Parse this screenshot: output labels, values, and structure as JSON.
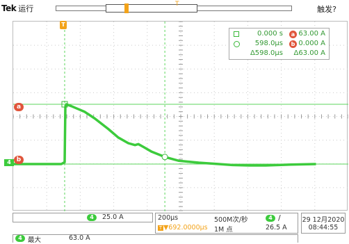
{
  "header": {
    "brand": "Tek",
    "run_state": "运行",
    "trigger_state": "触发?",
    "trigger_position_marker": "T"
  },
  "markers": {
    "cursor_a": "a",
    "cursor_b": "b",
    "channel": "4",
    "trigger_time": "T"
  },
  "cursors": {
    "cursor1_time": "0.000 s",
    "cursor1_label": "a",
    "cursor1_value": "63.00 A",
    "cursor2_time": "598.0µs",
    "cursor2_label": "b",
    "cursor2_value": "0.000 A",
    "delta_time": "Δ598.0µs",
    "delta_value": "Δ63.00 A"
  },
  "channel_scale": {
    "channel": "4",
    "volts_per_div": "25.0 A"
  },
  "timebase": {
    "scale": "200µs",
    "offset": "▼692.0000µs",
    "offset_prefix": "T",
    "sample_rate": "500M次/秒",
    "record_length": "1M 点",
    "trigger_channel": "4",
    "trigger_slope": "/",
    "trigger_level": "26.5 A"
  },
  "datetime": {
    "date": "29 12月2020",
    "time": "08:44:55"
  },
  "measurement": {
    "channel": "4",
    "name": "最大",
    "value": "63.0 A"
  },
  "colors": {
    "trace": "#3ccb3c",
    "cursor_badge": "#e0553b",
    "trigger": "#f3a31a",
    "grid": "#c9c9c9"
  },
  "chart_data": {
    "type": "line",
    "x_units": "µs",
    "x_per_div": 200,
    "y_units": "A",
    "y_per_div": 25,
    "series": [
      {
        "x": [
          -500,
          -100,
          -20,
          0,
          4,
          10,
          40,
          80,
          120,
          180,
          260,
          320,
          380,
          420,
          440,
          470,
          520,
          598,
          680,
          800,
          920,
          1000,
          1100,
          1200,
          1350,
          1500
        ],
        "y": [
          0,
          0,
          0,
          2,
          60,
          63,
          61,
          58,
          55,
          48,
          37,
          28,
          22,
          20,
          21,
          18,
          13,
          7.5,
          3.5,
          1.5,
          0,
          -1,
          -1.5,
          -1.5,
          -0.5,
          0
        ]
      }
    ]
  }
}
